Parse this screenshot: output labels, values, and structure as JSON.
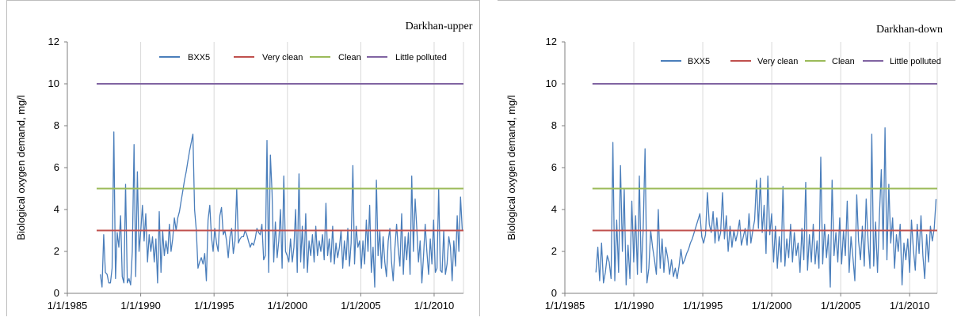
{
  "chart_data": [
    {
      "type": "line",
      "title": "Darkhan-upper",
      "ylabel": "Biological oxygen demand, mg/l",
      "xlabel": "",
      "ylim": [
        0,
        12
      ],
      "xlim": [
        "1/1/1985",
        "1/1/2012"
      ],
      "y_ticks": [
        "0",
        "2",
        "4",
        "6",
        "8",
        "10",
        "12"
      ],
      "x_ticks": [
        "1/1/1985",
        "1/1/1990",
        "1/1/1995",
        "1/1/2000",
        "1/1/2005",
        "1/1/2010"
      ],
      "grid": "vertical",
      "legend": "top",
      "series": [
        {
          "name": "BXX5",
          "color": "#4a7ebb",
          "x_range": [
            "1987-04",
            "2011-12"
          ],
          "values": [
            0.9,
            0.3,
            2.8,
            1.0,
            0.9,
            0.5,
            0.5,
            1.2,
            7.7,
            0.7,
            2.9,
            2.2,
            3.7,
            0.8,
            0.5,
            5.2,
            0.5,
            0.7,
            0.4,
            2.0,
            7.1,
            0.8,
            5.8,
            2.0,
            3.0,
            4.2,
            2.5,
            3.8,
            1.5,
            2.8,
            2.0,
            2.7,
            1.5,
            2.6,
            0.5,
            3.9,
            1.0,
            3.0,
            1.8,
            2.5,
            1.9,
            3.3,
            2.0,
            2.6,
            3.6,
            3.0,
            3.6,
            3.9,
            4.4,
            4.9,
            5.4,
            5.8,
            6.3,
            6.8,
            7.2,
            7.6,
            4.0,
            3.0,
            1.2,
            1.5,
            1.7,
            1.4,
            1.9,
            0.6,
            3.5,
            4.2,
            2.7,
            2.0,
            3.1,
            2.4,
            2.0,
            3.7,
            4.1,
            2.8,
            3.0,
            2.5,
            1.7,
            2.7,
            3.1,
            1.9,
            2.5,
            5.0,
            2.4,
            2.6,
            2.7,
            2.7,
            3.0,
            2.8,
            2.5,
            2.2,
            2.4,
            2.3,
            2.6,
            3.1,
            2.9,
            2.8,
            3.3,
            1.6,
            1.8,
            7.3,
            1.0,
            6.6,
            4.8,
            1.5,
            3.4,
            1.7,
            2.5,
            4.0,
            1.2,
            5.6,
            2.0,
            1.8,
            1.5,
            2.6,
            1.5,
            2.2,
            4.0,
            1.0,
            5.7,
            1.5,
            3.2,
            1.2,
            3.8,
            1.0,
            2.5,
            1.8,
            2.8,
            1.5,
            3.2,
            1.8,
            2.5,
            2.0,
            2.8,
            1.6,
            4.3,
            1.8,
            2.6,
            1.5,
            3.2,
            1.4,
            2.4,
            1.7,
            2.2,
            3.0,
            1.2,
            2.5,
            1.6,
            3.1,
            1.3,
            2.4,
            6.1,
            1.4,
            3.2,
            2.2,
            2.5,
            1.2,
            2.5,
            1.4,
            3.5,
            2.0,
            4.2,
            1.0,
            2.2,
            0.3,
            5.4,
            1.8,
            3.0,
            1.2,
            2.7,
            1.5,
            0.8,
            2.5,
            3.1,
            1.5,
            0.6,
            2.2,
            3.3,
            2.1,
            1.3,
            3.8,
            0.9,
            2.7,
            1.6,
            2.9,
            0.9,
            5.6,
            2.0,
            4.5,
            3.1,
            1.5,
            2.5,
            0.5,
            1.8,
            3.3,
            2.0,
            0.9,
            2.6,
            1.4,
            3.5,
            1.0,
            1.2,
            5.0,
            1.1,
            1.0,
            3.0,
            0.9,
            1.4,
            2.7,
            2.2,
            0.6,
            2.5,
            1.3,
            3.7,
            2.0,
            4.6,
            3.0
          ]
        },
        {
          "name": "Very clean",
          "color": "#c0504d",
          "x_range": [
            "1987-01",
            "2012-01"
          ],
          "values": [
            3,
            3
          ]
        },
        {
          "name": "Clean",
          "color": "#9bbb59",
          "x_range": [
            "1987-01",
            "2012-01"
          ],
          "values": [
            5,
            5
          ]
        },
        {
          "name": "Little polluted",
          "color": "#8064a2",
          "x_range": [
            "1987-01",
            "2012-01"
          ],
          "values": [
            10,
            10
          ]
        }
      ]
    },
    {
      "type": "line",
      "title": "Darkhan-down",
      "ylabel": "Biological oxygen demand, mg/l",
      "xlabel": "",
      "ylim": [
        0,
        12
      ],
      "xlim": [
        "1/1/1985",
        "1/1/2012"
      ],
      "y_ticks": [
        "0",
        "2",
        "4",
        "6",
        "8",
        "10",
        "12"
      ],
      "x_ticks": [
        "1/1/1985",
        "1/1/1990",
        "1/1/1995",
        "1/1/2000",
        "1/1/2005",
        "1/1/2010"
      ],
      "grid": "vertical",
      "legend": "top",
      "series": [
        {
          "name": "BXX5",
          "color": "#4a7ebb",
          "x_range": [
            "1987-04",
            "2011-12"
          ],
          "values": [
            1.0,
            2.2,
            0.6,
            2.4,
            0.5,
            1.0,
            1.8,
            1.5,
            0.7,
            7.2,
            0.6,
            3.5,
            1.0,
            6.1,
            2.0,
            5.0,
            0.4,
            2.3,
            0.7,
            4.4,
            1.5,
            3.7,
            0.9,
            5.6,
            1.0,
            3.0,
            6.9,
            0.5,
            1.2,
            3.0,
            2.2,
            1.6,
            0.9,
            4.0,
            1.2,
            2.6,
            1.0,
            2.2,
            1.7,
            0.9,
            1.6,
            0.8,
            1.2,
            0.7,
            1.3,
            2.1,
            1.4,
            1.6,
            1.9,
            2.1,
            2.4,
            2.6,
            2.9,
            3.2,
            3.5,
            3.8,
            2.7,
            2.4,
            2.8,
            4.8,
            3.3,
            2.9,
            3.9,
            2.4,
            3.6,
            2.5,
            2.9,
            4.8,
            2.6,
            3.7,
            2.0,
            3.2,
            2.2,
            3.0,
            2.5,
            2.9,
            3.5,
            2.3,
            2.7,
            3.1,
            2.3,
            3.8,
            2.4,
            3.0,
            3.5,
            5.4,
            3.1,
            5.5,
            2.9,
            4.2,
            1.9,
            5.6,
            2.8,
            3.8,
            1.5,
            3.2,
            1.2,
            2.7,
            1.5,
            5.1,
            1.3,
            2.6,
            1.7,
            3.3,
            1.5,
            2.9,
            1.8,
            2.4,
            1.0,
            3.1,
            1.6,
            5.3,
            1.1,
            2.8,
            1.5,
            3.3,
            1.4,
            2.5,
            1.2,
            6.5,
            1.4,
            3.3,
            1.7,
            2.8,
            0.3,
            5.4,
            1.8,
            2.9,
            1.5,
            3.6,
            1.4,
            3.0,
            1.8,
            4.4,
            1.0,
            2.7,
            1.7,
            0.6,
            4.7,
            2.5,
            1.6,
            3.2,
            1.3,
            4.5,
            2.5,
            1.2,
            7.6,
            1.3,
            3.4,
            1.0,
            3.7,
            5.9,
            2.1,
            7.9,
            1.6,
            5.2,
            2.4,
            3.6,
            1.2,
            2.8,
            2.0,
            3.3,
            0.4,
            2.4,
            1.6,
            2.6,
            1.0,
            3.5,
            2.1,
            1.1,
            3.3,
            1.9,
            3.7,
            1.8,
            0.7,
            2.8,
            1.5,
            3.2,
            2.5,
            3.1,
            4.5
          ]
        },
        {
          "name": "Very clean",
          "color": "#c0504d",
          "x_range": [
            "1987-01",
            "2012-01"
          ],
          "values": [
            3,
            3
          ]
        },
        {
          "name": "Clean",
          "color": "#9bbb59",
          "x_range": [
            "1987-01",
            "2012-01"
          ],
          "values": [
            5,
            5
          ]
        },
        {
          "name": "Little polluted",
          "color": "#8064a2",
          "x_range": [
            "1987-01",
            "2012-01"
          ],
          "values": [
            10,
            10
          ]
        }
      ]
    }
  ]
}
